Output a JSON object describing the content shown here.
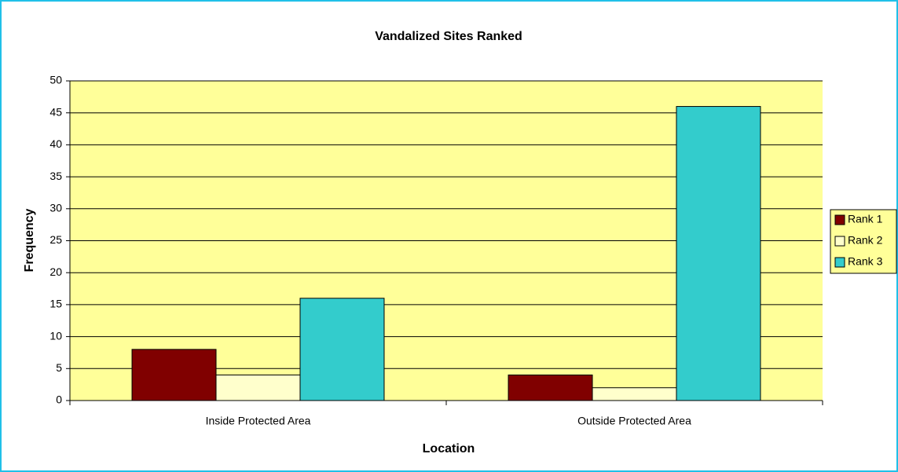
{
  "chart_data": {
    "type": "bar",
    "title": "Vandalized Sites Ranked",
    "x_label": "Location",
    "y_label": "Frequency",
    "categories": [
      "Inside Protected Area",
      "Outside Protected Area"
    ],
    "series": [
      {
        "name": "Rank 1",
        "color": "#800000",
        "values": [
          8,
          4
        ]
      },
      {
        "name": "Rank 2",
        "color": "#ffffcc",
        "values": [
          4,
          2
        ]
      },
      {
        "name": "Rank 3",
        "color": "#33cccc",
        "values": [
          16,
          46
        ]
      }
    ],
    "ylim": [
      0,
      50
    ],
    "yticks": [
      0,
      5,
      10,
      15,
      20,
      25,
      30,
      35,
      40,
      45,
      50
    ],
    "grid": true,
    "legend": "right"
  }
}
